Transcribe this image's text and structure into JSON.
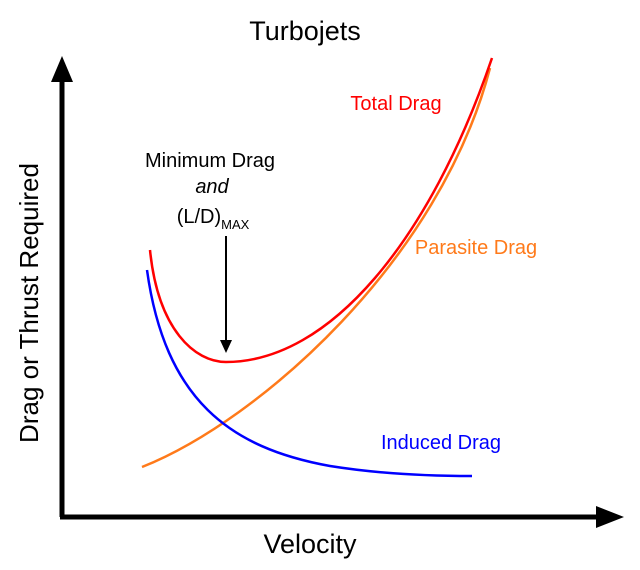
{
  "title": "Turbojets",
  "x_axis_label": "Velocity",
  "y_axis_label": "Drag or Thrust Required",
  "curves": [
    {
      "key": "total",
      "label": "Total Drag",
      "color": "#ff0000"
    },
    {
      "key": "parasite",
      "label": "Parasite Drag",
      "color": "#ff7a1a"
    },
    {
      "key": "induced",
      "label": "Induced Drag",
      "color": "#0000ff"
    }
  ],
  "annotation": {
    "line1": "Minimum Drag",
    "line2": "and",
    "line3_main": "(L/D)",
    "line3_sub": "MAX"
  },
  "colors": {
    "axes": "#000000",
    "text": "#000000"
  }
}
